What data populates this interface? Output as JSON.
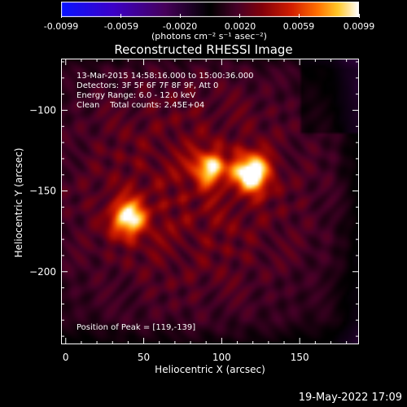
{
  "colorbar": {
    "ticks": [
      "-0.0099",
      "-0.0059",
      "-0.0020",
      "0.0020",
      "0.0059",
      "0.0099"
    ],
    "tick_values": [
      -0.0099,
      -0.0059,
      -0.002,
      0.002,
      0.0059,
      0.0099
    ],
    "range": [
      -0.0099,
      0.0099
    ],
    "unit_label": "(photons cm⁻² s⁻¹ asec⁻²)"
  },
  "chart_data": {
    "type": "heatmap",
    "title": "Reconstructed RHESSI Image",
    "xlabel": "Heliocentric X (arcsec)",
    "ylabel": "Heliocentric Y (arcsec)",
    "xlim": [
      -3,
      188
    ],
    "ylim": [
      -245,
      -68
    ],
    "x_ticks": [
      0,
      50,
      100,
      150
    ],
    "y_ticks": [
      -100,
      -150,
      -200
    ],
    "annotations": [
      "13-Mar-2015 14:58:16.000 to 15:00:36.000",
      "Detectors: 3F 5F 6F 7F 8F 9F, Att 0",
      "Energy Range: 6.0 - 12.0 keV",
      "Clean    Total counts: 2.45E+04"
    ],
    "peak_label": "Position of Peak = [119,-139]",
    "peak": [
      119,
      -139
    ],
    "sources": [
      {
        "x": 119,
        "y": -139,
        "peak": 0.0099
      },
      {
        "x": 92,
        "y": -136,
        "peak": 0.0072
      },
      {
        "x": 40,
        "y": -167,
        "peak": 0.008
      }
    ],
    "colormap": "rainbow + white (IDL ctable 5-like)"
  },
  "footer": {
    "date": "19-May-2022 17:09"
  }
}
